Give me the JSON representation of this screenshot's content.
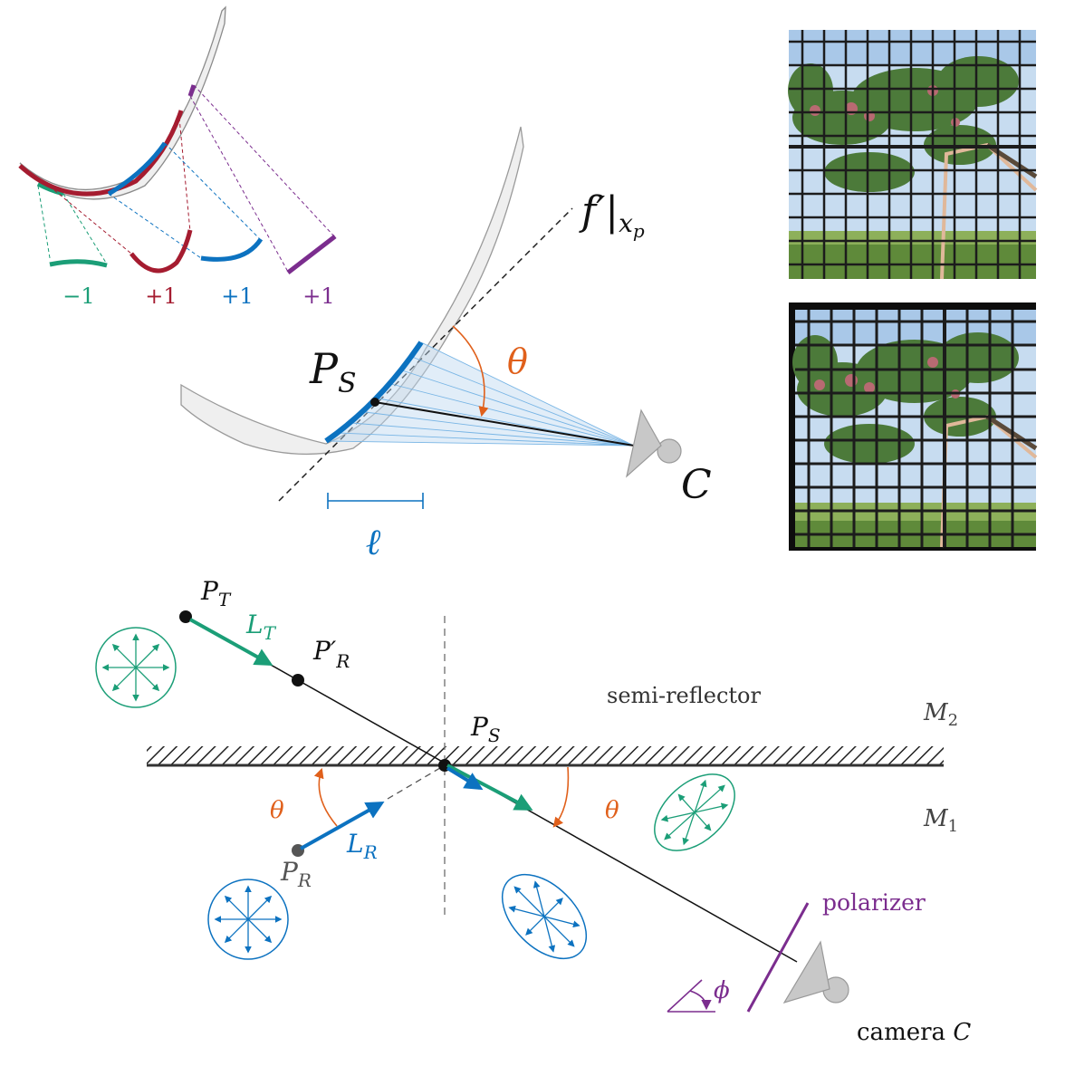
{
  "colors": {
    "green": "#1b9e77",
    "crimson": "#a51c30",
    "blue": "#0c72c0",
    "purple": "#7b2d8e",
    "orange": "#e0601b",
    "gray_fill": "#c8c8c8",
    "mirror_fill": "#efefef"
  },
  "top_left_inset": {
    "labels": [
      "−1",
      "+1",
      "+1",
      "+1"
    ]
  },
  "upper_diagram": {
    "point_main": "P",
    "point_sub": "S",
    "angle_label": "θ",
    "focal_main": "f′|",
    "focal_sub_main": "x",
    "focal_sub_sub": "p",
    "camera_label": "C",
    "length_label": "ℓ"
  },
  "photos": {
    "top": {
      "desc": "tree-behind-grid-fence"
    },
    "bottom": {
      "desc": "tree-behind-grid-fence-dark-border"
    }
  },
  "lower_diagram": {
    "pt_main": "P",
    "pt_sub": "T",
    "lt_main": "L",
    "lt_sub": "T",
    "pr_prime_main": "P′",
    "pr_prime_sub": "R",
    "ps_main": "P",
    "ps_sub": "S",
    "pr_main": "P",
    "pr_sub": "R",
    "lr_main": "L",
    "lr_sub": "R",
    "semi_reflector": "semi-reflector",
    "m2_main": "M",
    "m2_sub": "2",
    "m1_main": "M",
    "m1_sub": "1",
    "theta_left": "θ",
    "theta_right": "θ",
    "polarizer": "polarizer",
    "phi": "ϕ",
    "camera_text": "camera ",
    "camera_c": "C"
  }
}
